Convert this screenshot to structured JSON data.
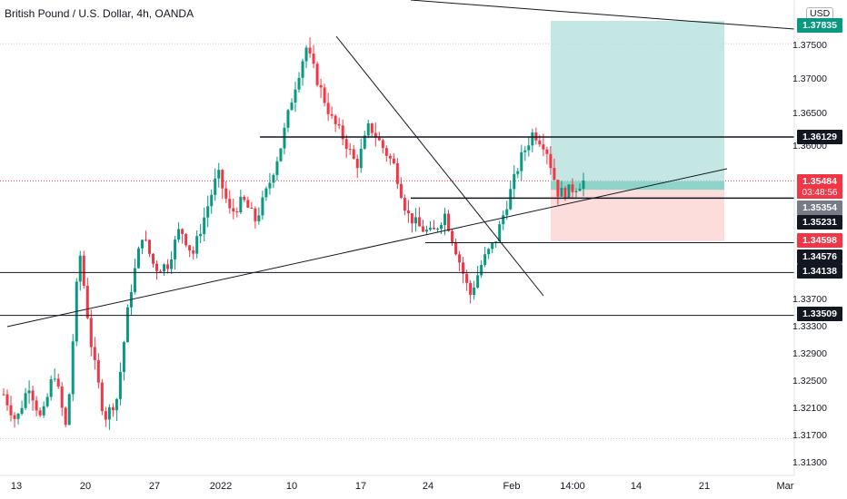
{
  "header": {
    "symbol_title": "British Pound / U.S. Dollar, 4h, OANDA",
    "currency": "USD"
  },
  "price_axis": {
    "labels": [
      "1.37500",
      "1.37000",
      "1.36500",
      "1.36000",
      "1.33700",
      "1.33300",
      "1.32900",
      "1.32500",
      "1.32100",
      "1.31700",
      "1.31300"
    ]
  },
  "time_axis": {
    "labels": [
      "13",
      "20",
      "27",
      "2022",
      "10",
      "17",
      "24",
      "Feb",
      "14:00",
      "14",
      "21",
      "Mar"
    ]
  },
  "price_tags": {
    "target": "1.37835",
    "resistance_high": "1.36129",
    "current": "1.35484",
    "countdown": "03:48:56",
    "gray": "1.35354",
    "level_mid": "1.35231",
    "stop": "1.34598",
    "level_low": "1.34576",
    "support_1": "1.34138",
    "support_2": "1.33509"
  },
  "colors": {
    "bull": "#089981",
    "bear": "#f23645",
    "profit_zone": "#b2dfdb",
    "loss_zone": "#fcd3d3",
    "line": "#131722",
    "grid_dotted": "#c5c7ce"
  },
  "chart_data": {
    "type": "candlestick",
    "instrument": "GBPUSD",
    "timeframe": "4h",
    "x_tick_labels": [
      "13",
      "20",
      "27",
      "2022",
      "10",
      "17",
      "24",
      "Feb",
      "14:00",
      "14",
      "21",
      "Mar"
    ],
    "ylim": [
      1.311,
      1.381
    ],
    "price_trend_path": [
      1.3235,
      1.3195,
      1.325,
      1.3195,
      1.327,
      1.318,
      1.345,
      1.33,
      1.32,
      1.323,
      1.338,
      1.347,
      1.342,
      1.3425,
      1.348,
      1.344,
      1.35,
      1.356,
      1.35,
      1.352,
      1.349,
      1.354,
      1.36,
      1.368,
      1.3745,
      1.369,
      1.364,
      1.361,
      1.357,
      1.363,
      1.36,
      1.357,
      1.35,
      1.348,
      1.347,
      1.35,
      1.344,
      1.338,
      1.343,
      1.346,
      1.352,
      1.358,
      1.362,
      1.36,
      1.353,
      1.3535,
      1.3548
    ],
    "horizontal_levels": [
      1.36129,
      1.35231,
      1.34576,
      1.34138,
      1.33509
    ],
    "position": {
      "entry": 1.35354,
      "target": 1.37835,
      "stop": 1.34598
    },
    "current_price": 1.35484,
    "y_labels": [
      "1.37500",
      "1.37000",
      "1.36500",
      "1.36000",
      "1.33700",
      "1.33300",
      "1.32900",
      "1.32500",
      "1.32100",
      "1.31700",
      "1.31300"
    ]
  }
}
